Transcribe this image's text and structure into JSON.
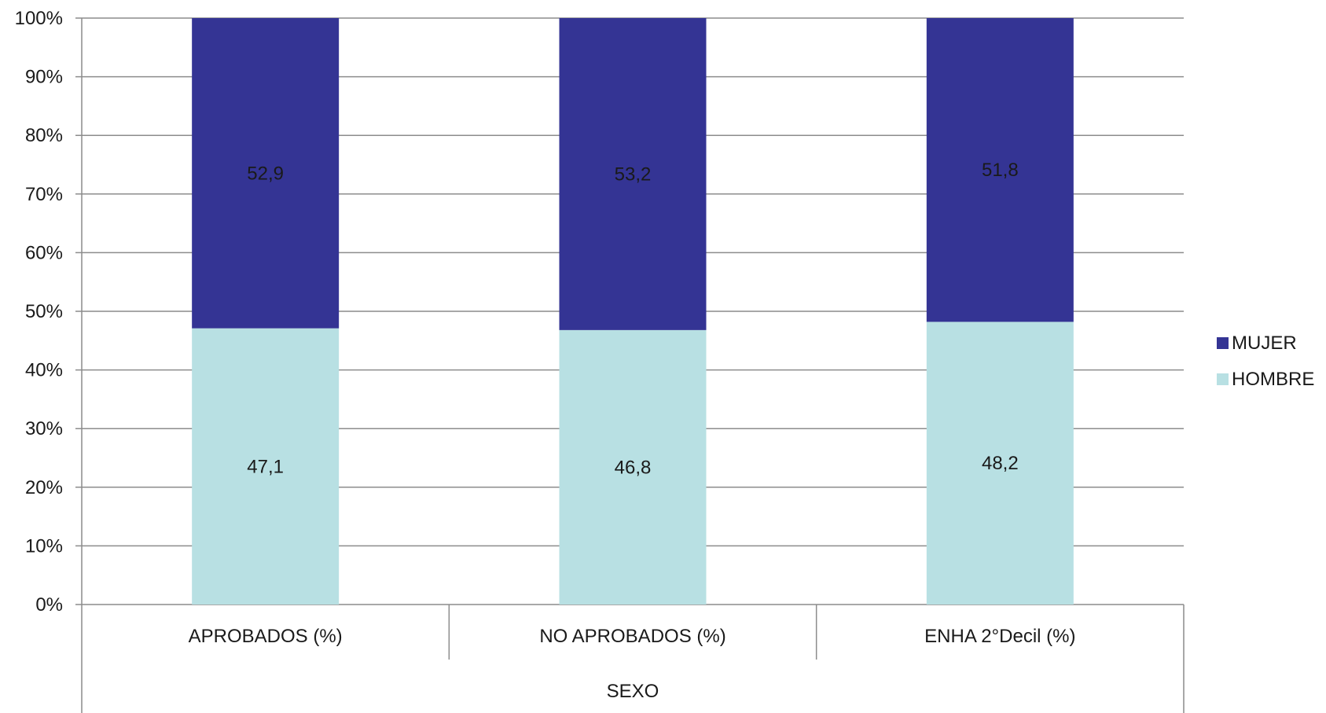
{
  "chart_data": {
    "type": "bar",
    "stacked": true,
    "categories": [
      "APROBADOS (%)",
      "NO APROBADOS (%)",
      "ENHA 2°Decil (%)"
    ],
    "group_label": "SEXO",
    "series": [
      {
        "name": "HOMBRE",
        "values": [
          47.1,
          46.8,
          48.2
        ],
        "labels": [
          "47,1",
          "46,8",
          "48,2"
        ],
        "color": "#b8e0e3"
      },
      {
        "name": "MUJER",
        "values": [
          52.9,
          53.2,
          51.8
        ],
        "labels": [
          "52,9",
          "53,2",
          "51,8"
        ],
        "color": "#343494"
      }
    ],
    "ylim": [
      0,
      100
    ],
    "yticks": [
      "0%",
      "10%",
      "20%",
      "30%",
      "40%",
      "50%",
      "60%",
      "70%",
      "80%",
      "90%",
      "100%"
    ],
    "grid": true,
    "legend_position": "right",
    "legend_order": [
      "MUJER",
      "HOMBRE"
    ]
  }
}
